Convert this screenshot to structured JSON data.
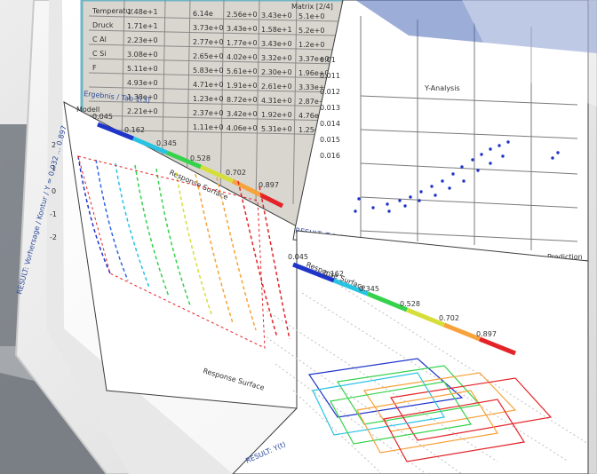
{
  "table_panel": {
    "rows": [
      [
        "Temperatur",
        "1.48e+1",
        "",
        "6.14e",
        "2.56e+0",
        "3.43e+0",
        "5.1e+0"
      ],
      [
        "Druck",
        "1.71e+1",
        "",
        "3.73e+0",
        "3.43e+0",
        "1.58e+1",
        "5.2e+0"
      ],
      [
        "C Al",
        "2.23e+0",
        "",
        "2.77e+0",
        "1.77e+0",
        "3.43e+0",
        "1.2e+0"
      ],
      [
        "C Si",
        "3.08e+0",
        "",
        "2.65e+0",
        "4.02e+0",
        "3.32e+0",
        "3.37e+0"
      ],
      [
        "F",
        "5.11e+0",
        "",
        "5.83e+0",
        "5.61e+0",
        "2.30e+0",
        "1.96e+0"
      ],
      [
        "",
        "4.93e+0",
        "",
        "4.71e+0",
        "1.91e+0",
        "2.61e+0",
        "3.33e+0"
      ],
      [
        "",
        "1.38e+0",
        "",
        "1.23e+0",
        "8.72e+0",
        "4.31e+0",
        "2.87e+0"
      ],
      [
        "",
        "2.21e+0",
        "",
        "2.37e+0",
        "3.42e+0",
        "1.92e+0",
        "4.76e+0"
      ],
      [
        "",
        "",
        "",
        "1.11e+0",
        "4.06e+0",
        "5.31e+0",
        "1.25e+0"
      ]
    ],
    "title_right": "Matrix [2/4]",
    "status": "Ergebnis / Tab 1(3)"
  },
  "contour_panel": {
    "scale_ticks": [
      "0.045",
      "0.162",
      "0.345",
      "0.528",
      "0.702",
      "0.897"
    ],
    "scale_label": "Response Surface",
    "y_ticks": [
      "2",
      "1",
      "0",
      "-1",
      "-2"
    ],
    "x_label_top": "Modell",
    "footer": "RESULT: Vorhersage / Kontur / Y = 0.032 ... 0.897",
    "footer_right": "Response Surface"
  },
  "scatter_panel": {
    "title": "Y-Analysis",
    "y_ticks": [
      "0.01",
      "0.011",
      "0.012",
      "0.013",
      "0.014",
      "0.015",
      "0.016"
    ],
    "x_label": "Prediction",
    "status": "RESULT: Tab 1(3)"
  },
  "surface_panel": {
    "scale_ticks": [
      "0.045",
      "0.162",
      "0.345",
      "0.528",
      "0.702",
      "0.897"
    ],
    "scale_label": "Response Surface",
    "status": "RESULT: Y(t)"
  }
}
